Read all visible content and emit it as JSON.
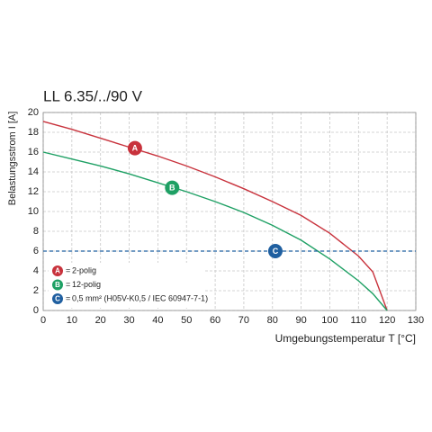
{
  "chart_data": {
    "type": "line",
    "title": "LL 6.35/../90 V",
    "x_label": "Umgebungstemperatur T [°C]",
    "y_label": "Belastungsstrom I [A]",
    "xlim": [
      0,
      130
    ],
    "xticks": [
      0,
      10,
      20,
      30,
      40,
      50,
      60,
      70,
      80,
      90,
      100,
      110,
      120,
      130
    ],
    "ylim": [
      0,
      20
    ],
    "yticks": [
      0,
      2,
      4,
      6,
      8,
      10,
      12,
      14,
      16,
      18,
      20
    ],
    "grid": true,
    "series": [
      {
        "name": "2-polig",
        "marker": "A",
        "color": "#c8323c",
        "x": [
          0,
          10,
          20,
          30,
          40,
          50,
          60,
          70,
          80,
          90,
          100,
          110,
          115,
          120
        ],
        "values": [
          19.1,
          18.3,
          17.4,
          16.5,
          15.6,
          14.6,
          13.5,
          12.3,
          11.0,
          9.6,
          7.8,
          5.5,
          3.9,
          0
        ]
      },
      {
        "name": "12-polig",
        "marker": "B",
        "color": "#1ea064",
        "x": [
          0,
          10,
          20,
          30,
          40,
          50,
          60,
          70,
          80,
          90,
          100,
          110,
          115,
          120
        ],
        "values": [
          16,
          15.3,
          14.6,
          13.8,
          12.9,
          12.0,
          11.0,
          9.9,
          8.6,
          7.1,
          5.2,
          3.0,
          1.7,
          0
        ]
      },
      {
        "name": "0,5 mm² (H05V-K0,5 / IEC 60947-7-1)",
        "marker": "C",
        "color": "#1f5fa0",
        "dashed": true,
        "x": [
          0,
          130
        ],
        "values": [
          6,
          6
        ]
      }
    ],
    "markers": [
      {
        "label": "A",
        "x": 32,
        "y": 16.4
      },
      {
        "label": "B",
        "x": 45,
        "y": 12.4
      },
      {
        "label": "C",
        "x": 81,
        "y": 6
      }
    ]
  }
}
